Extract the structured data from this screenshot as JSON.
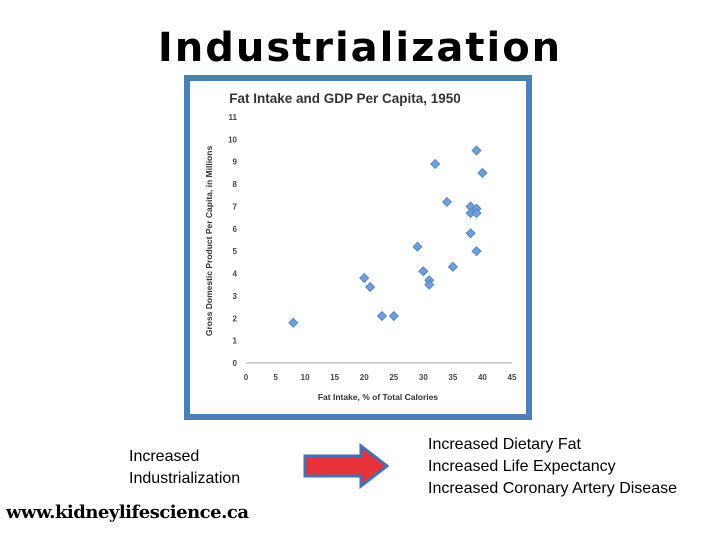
{
  "slide": {
    "title": "Industrialization",
    "left_lines": [
      "Increased",
      "Industrialization"
    ],
    "right_lines": [
      "Increased Dietary Fat",
      "Increased Life Expectancy",
      "Increased Coronary Artery Disease"
    ],
    "website": "www.kidneylifescience.ca",
    "colors": {
      "frame": "#4a7fb8",
      "arrow_fill": "#e8323a",
      "arrow_border": "#4a6fb0",
      "marker": "#6f9fd8"
    }
  },
  "chart_data": {
    "type": "scatter",
    "title": "Fat Intake and GDP Per Capita, 1950",
    "xlabel": "Fat Intake, % of Total Calories",
    "ylabel": "Gross Domestic Product Per Capita, in Millions",
    "xlim": [
      0,
      45
    ],
    "ylim": [
      0,
      11
    ],
    "xticks": [
      0,
      5,
      10,
      15,
      20,
      25,
      30,
      35,
      40,
      45
    ],
    "yticks": [
      0,
      1,
      2,
      3,
      4,
      5,
      6,
      7,
      8,
      9,
      10,
      11
    ],
    "grid": false,
    "legend": "none",
    "points": [
      {
        "x": 8,
        "y": 1.8
      },
      {
        "x": 20,
        "y": 3.8
      },
      {
        "x": 21,
        "y": 3.4
      },
      {
        "x": 23,
        "y": 2.1
      },
      {
        "x": 25,
        "y": 2.1
      },
      {
        "x": 29,
        "y": 5.2
      },
      {
        "x": 30,
        "y": 4.1
      },
      {
        "x": 31,
        "y": 3.7
      },
      {
        "x": 31,
        "y": 3.5
      },
      {
        "x": 32,
        "y": 8.9
      },
      {
        "x": 34,
        "y": 7.2
      },
      {
        "x": 35,
        "y": 4.3
      },
      {
        "x": 38,
        "y": 5.8
      },
      {
        "x": 38,
        "y": 7.0
      },
      {
        "x": 38,
        "y": 6.7
      },
      {
        "x": 39,
        "y": 6.9
      },
      {
        "x": 39,
        "y": 6.7
      },
      {
        "x": 39,
        "y": 5.0
      },
      {
        "x": 39,
        "y": 9.5
      },
      {
        "x": 40,
        "y": 8.5
      }
    ]
  }
}
